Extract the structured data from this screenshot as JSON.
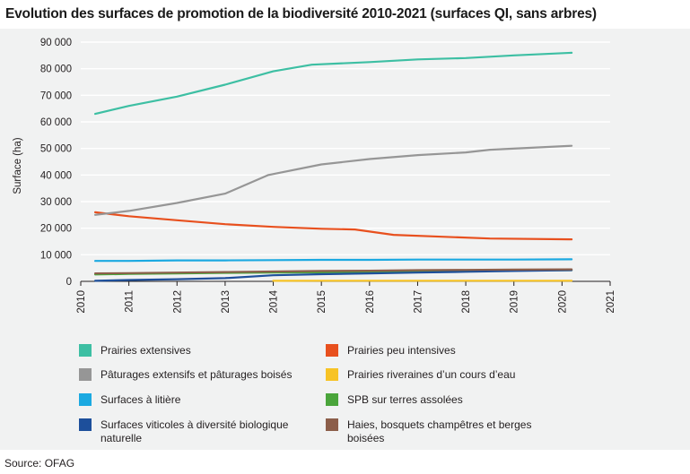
{
  "title": "Evolution des surfaces de promotion de la biodiversité 2010-2021 (surfaces QI, sans arbres)",
  "source": "Source: OFAG",
  "chart_data": {
    "type": "line",
    "title": "Evolution des surfaces de promotion de la biodiversité 2010-2021 (surfaces QI, sans arbres)",
    "xlabel": "",
    "ylabel": "Surface (ha)",
    "xlim": [
      2010,
      2021
    ],
    "ylim": [
      0,
      90000
    ],
    "xticks": [
      "2010",
      "2011",
      "2012",
      "2013",
      "2014",
      "2015",
      "2016",
      "2017",
      "2018",
      "2019",
      "2020",
      "2021"
    ],
    "yticks": [
      {
        "value": 0,
        "label": "0"
      },
      {
        "value": 10000,
        "label": "10 000"
      },
      {
        "value": 20000,
        "label": "20 000"
      },
      {
        "value": 30000,
        "label": "30 000"
      },
      {
        "value": 40000,
        "label": "40 000"
      },
      {
        "value": 50000,
        "label": "50 000"
      },
      {
        "value": 60000,
        "label": "60 000"
      },
      {
        "value": 70000,
        "label": "70 000"
      },
      {
        "value": 80000,
        "label": "80 000"
      },
      {
        "value": 90000,
        "label": "90 000"
      }
    ],
    "grid": true,
    "series": [
      {
        "name": "Prairies extensives",
        "color": "#3dbfa3",
        "x": [
          2010.3,
          2011,
          2012,
          2013,
          2014,
          2014.8,
          2016,
          2017,
          2018,
          2019,
          2020.2
        ],
        "y": [
          63000,
          66000,
          69500,
          74000,
          79000,
          81500,
          82500,
          83500,
          84000,
          85000,
          86000
        ]
      },
      {
        "name": "Prairies peu intensives",
        "color": "#e8501e",
        "x": [
          2010.3,
          2011,
          2012,
          2013,
          2014,
          2015,
          2015.7,
          2016.5,
          2017.5,
          2018.5,
          2020.2
        ],
        "y": [
          26000,
          24500,
          23000,
          21500,
          20500,
          19800,
          19500,
          17500,
          16800,
          16100,
          15800
        ]
      },
      {
        "name": "Pâturages extensifs et pâturages boisés",
        "color": "#969696",
        "x": [
          2010.3,
          2011,
          2012,
          2013,
          2013.9,
          2015,
          2016,
          2017,
          2018,
          2018.5,
          2020.2
        ],
        "y": [
          25000,
          26500,
          29500,
          33000,
          40000,
          44000,
          46000,
          47500,
          48500,
          49500,
          51000
        ]
      },
      {
        "name": "Prairies riveraines d’un cours d’eau",
        "color": "#f7c325",
        "x": [
          2014,
          2015,
          2016,
          2017,
          2018,
          2019,
          2020.2
        ],
        "y": [
          200,
          250,
          250,
          250,
          250,
          250,
          250
        ]
      },
      {
        "name": "Surfaces à litière",
        "color": "#1ba9e1",
        "x": [
          2010.3,
          2011,
          2012,
          2013,
          2014,
          2015,
          2016,
          2017,
          2018,
          2019,
          2020.2
        ],
        "y": [
          7700,
          7700,
          7900,
          7900,
          8000,
          8100,
          8100,
          8200,
          8200,
          8200,
          8300
        ]
      },
      {
        "name": "SPB sur terres assolées",
        "color": "#4aa53b",
        "x": [
          2010.3,
          2011,
          2012,
          2013,
          2014,
          2015,
          2016,
          2017,
          2018,
          2019,
          2020.2
        ],
        "y": [
          2600,
          2800,
          3000,
          3200,
          3300,
          3400,
          3500,
          3700,
          3900,
          4100,
          4200
        ]
      },
      {
        "name": "Surfaces viticoles à diversité biologique naturelle",
        "color": "#1d4f9b",
        "x": [
          2010.3,
          2011,
          2012,
          2013,
          2014,
          2015,
          2016,
          2017,
          2018,
          2019,
          2020.2
        ],
        "y": [
          200,
          500,
          800,
          1200,
          2300,
          2700,
          3000,
          3300,
          3600,
          3900,
          4200
        ]
      },
      {
        "name": "Haies, bosquets champêtres et berges boisées",
        "color": "#8c5e4a",
        "x": [
          2010.3,
          2011,
          2012,
          2013,
          2014,
          2015,
          2016,
          2017,
          2018,
          2019,
          2020.2
        ],
        "y": [
          3000,
          3100,
          3300,
          3500,
          3700,
          3900,
          4000,
          4200,
          4300,
          4400,
          4500
        ]
      }
    ]
  }
}
